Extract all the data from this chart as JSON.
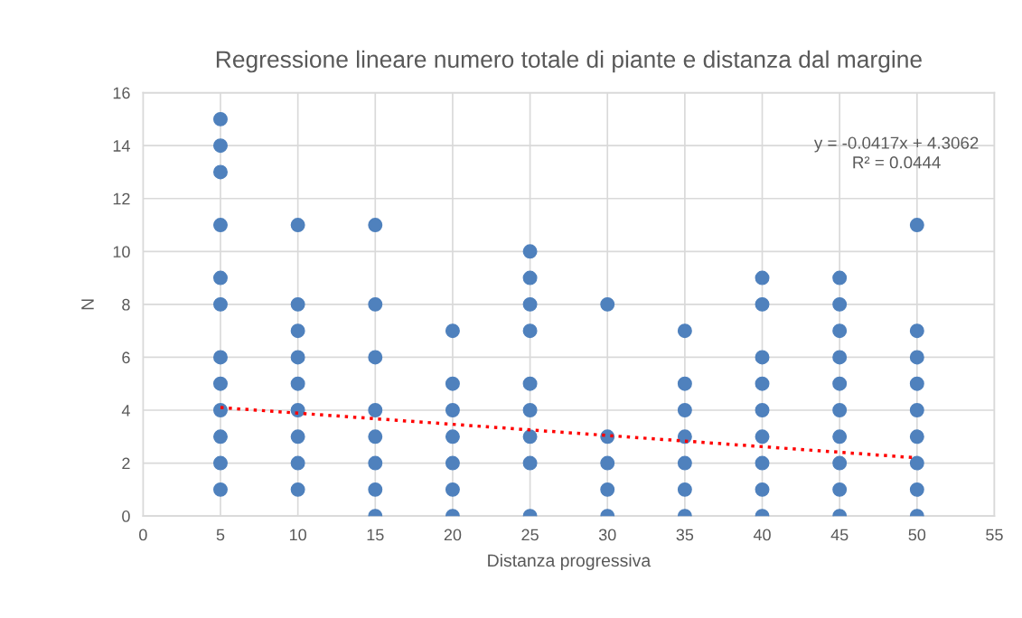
{
  "chart_data": {
    "type": "scatter",
    "title": "Regressione lineare numero totale di piante e distanza dal margine",
    "xlabel": "Distanza progressiva",
    "ylabel": "N",
    "series": [
      {
        "color": "#4f81bd",
        "marker": "circle",
        "x": [
          5,
          5,
          5,
          5,
          5,
          5,
          5,
          5,
          5,
          5,
          5,
          5,
          10,
          10,
          10,
          10,
          10,
          10,
          10,
          10,
          10,
          15,
          15,
          15,
          15,
          15,
          15,
          15,
          15,
          20,
          20,
          20,
          20,
          20,
          20,
          20,
          25,
          25,
          25,
          25,
          25,
          25,
          25,
          25,
          25,
          30,
          30,
          30,
          30,
          30,
          35,
          35,
          35,
          35,
          35,
          35,
          35,
          40,
          40,
          40,
          40,
          40,
          40,
          40,
          40,
          40,
          45,
          45,
          45,
          45,
          45,
          45,
          45,
          45,
          45,
          45,
          50,
          50,
          50,
          50,
          50,
          50,
          50,
          50,
          50
        ],
        "values": [
          1,
          2,
          3,
          4,
          5,
          6,
          8,
          9,
          11,
          13,
          14,
          15,
          1,
          2,
          3,
          4,
          5,
          6,
          7,
          8,
          11,
          0,
          1,
          2,
          3,
          4,
          6,
          8,
          11,
          0,
          1,
          2,
          3,
          4,
          5,
          7,
          0,
          2,
          3,
          4,
          5,
          7,
          8,
          9,
          10,
          0,
          1,
          2,
          3,
          8,
          0,
          1,
          2,
          3,
          4,
          5,
          7,
          0,
          1,
          2,
          3,
          4,
          5,
          6,
          8,
          9,
          0,
          1,
          2,
          3,
          4,
          5,
          6,
          7,
          8,
          9,
          0,
          1,
          2,
          3,
          4,
          5,
          6,
          7,
          11
        ]
      },
      {
        "type": "line",
        "color": "#ff0000",
        "line_style": "dotted",
        "marker": "none",
        "x": [
          5,
          50
        ],
        "values": [
          4.1,
          2.2
        ]
      }
    ],
    "xlim": [
      0,
      55
    ],
    "xticks": [
      0,
      5,
      10,
      15,
      20,
      25,
      30,
      35,
      40,
      45,
      50,
      55
    ],
    "ylim": [
      0,
      16
    ],
    "yticks": [
      0,
      2,
      4,
      6,
      8,
      10,
      12,
      14,
      16
    ],
    "grid": true,
    "annotations": [
      "y = -0.0417x + 4.3062",
      "R² = 0.0444"
    ]
  }
}
